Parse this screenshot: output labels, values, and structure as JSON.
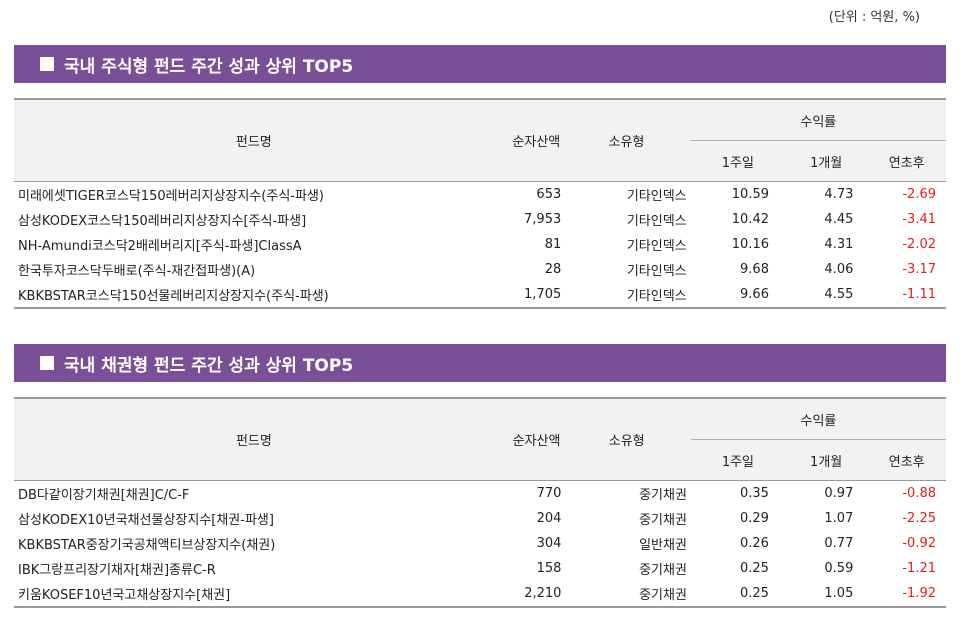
{
  "unit_label": "(단위 : 억원, %)",
  "sections": [
    {
      "title": "국내 주식형 펀드 주간 성과 상위 TOP5",
      "headers": {
        "name": "펀드명",
        "nav": "순자산액",
        "type": "소유형",
        "returns": "수익률",
        "week": "1주일",
        "month": "1개월",
        "ytd": "연초후"
      },
      "rows": [
        {
          "name": "미래에셋TIGER코스닥150레버리지상장지수(주식-파생)",
          "nav": "653",
          "type": "기타인덱스",
          "week": "10.59",
          "month": "4.73",
          "ytd": "-2.69"
        },
        {
          "name": "삼성KODEX코스닥150레버리지상장지수[주식-파생]",
          "nav": "7,953",
          "type": "기타인덱스",
          "week": "10.42",
          "month": "4.45",
          "ytd": "-3.41"
        },
        {
          "name": "NH-Amundi코스닥2배레버리지[주식-파생]ClassA",
          "nav": "81",
          "type": "기타인덱스",
          "week": "10.16",
          "month": "4.31",
          "ytd": "-2.02"
        },
        {
          "name": "한국투자코스닥두배로(주식-재간접파생)(A)",
          "nav": "28",
          "type": "기타인덱스",
          "week": "9.68",
          "month": "4.06",
          "ytd": "-3.17"
        },
        {
          "name": "KBKBSTAR코스닥150선물레버리지상장지수(주식-파생)",
          "nav": "1,705",
          "type": "기타인덱스",
          "week": "9.66",
          "month": "4.55",
          "ytd": "-1.11"
        }
      ]
    },
    {
      "title": "국내 채권형 펀드 주간 성과 상위 TOP5",
      "headers": {
        "name": "펀드명",
        "nav": "순자산액",
        "type": "소유형",
        "returns": "수익률",
        "week": "1주일",
        "month": "1개월",
        "ytd": "연초후"
      },
      "rows": [
        {
          "name": "DB다같이장기채권[채권]C/C-F",
          "nav": "770",
          "type": "중기채권",
          "week": "0.35",
          "month": "0.97",
          "ytd": "-0.88"
        },
        {
          "name": "삼성KODEX10년국채선물상장지수[채권-파생]",
          "nav": "204",
          "type": "중기채권",
          "week": "0.29",
          "month": "1.07",
          "ytd": "-2.25"
        },
        {
          "name": "KBKBSTAR중장기국공채액티브상장지수(채권)",
          "nav": "304",
          "type": "일반채권",
          "week": "0.26",
          "month": "0.77",
          "ytd": "-0.92"
        },
        {
          "name": "IBK그랑프리장기채자[채권]종류C-R",
          "nav": "158",
          "type": "중기채권",
          "week": "0.25",
          "month": "0.59",
          "ytd": "-1.21"
        },
        {
          "name": "키움KOSEF10년국고채상장지수[채권]",
          "nav": "2,210",
          "type": "중기채권",
          "week": "0.25",
          "month": "1.05",
          "ytd": "-1.92"
        }
      ]
    }
  ]
}
